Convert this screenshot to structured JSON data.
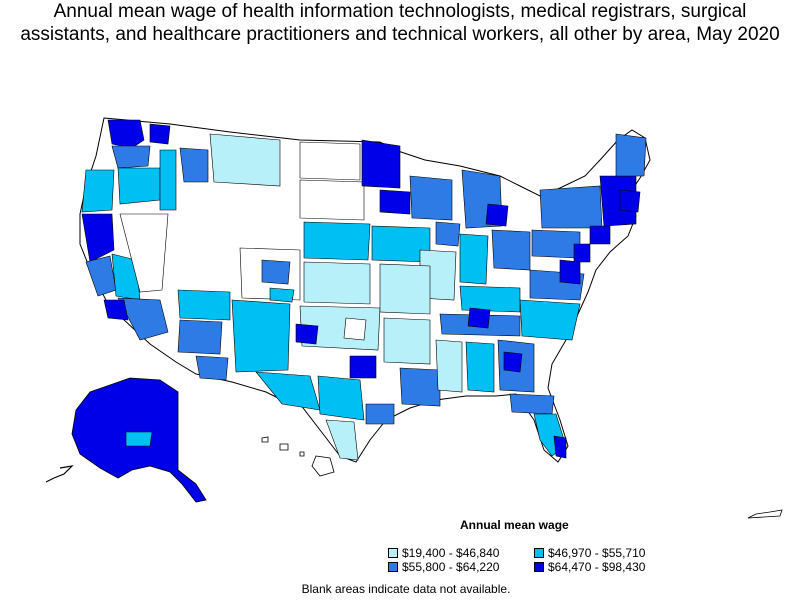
{
  "title": {
    "line1": "Annual mean wage of health information technologists, medical registrars, surgical",
    "line2": "assistants, and healthcare practitioners and technical workers, all other by area, May 2020"
  },
  "legend": {
    "title": "Annual mean wage",
    "items": [
      {
        "label": "$19,400 - $46,840",
        "color": "#b7f0f8"
      },
      {
        "label": "$46,970 - $55,710",
        "color": "#00bff2"
      },
      {
        "label": "$55,800 - $64,220",
        "color": "#2f7be6"
      },
      {
        "label": "$64,470 - $98,430",
        "color": "#0000e8"
      }
    ]
  },
  "note": "Blank areas indicate data not available.",
  "colors": {
    "no_data": "#ffffff",
    "border": "#000000"
  }
}
